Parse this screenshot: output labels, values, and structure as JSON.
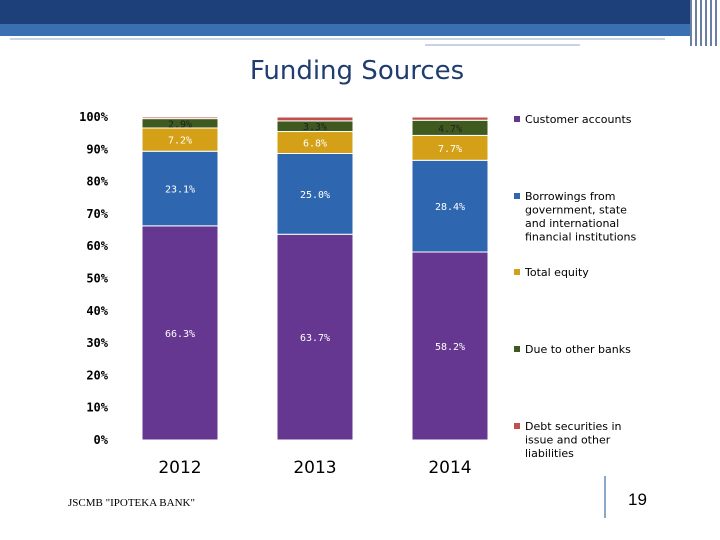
{
  "slide": {
    "title": "Funding Sources",
    "footer": "JSCMB \"IPOTEKA BANK\"",
    "page_number": "19"
  },
  "colors": {
    "customer_accounts": "#653791",
    "borrowings": "#2e66b0",
    "total_equity": "#d4a017",
    "due_to_banks": "#3f5a1e",
    "debt_securities": "#c0504d"
  },
  "chart_data": {
    "type": "bar",
    "stacked": true,
    "title": "Funding Sources",
    "categories": [
      "2012",
      "2013",
      "2014"
    ],
    "ylim": [
      0,
      100
    ],
    "yticks": [
      "0%",
      "10%",
      "20%",
      "30%",
      "40%",
      "50%",
      "60%",
      "70%",
      "80%",
      "90%",
      "100%"
    ],
    "series": [
      {
        "name": "Customer accounts",
        "color": "#653791",
        "values": [
          66.3,
          63.7,
          58.2
        ],
        "labels": [
          "66.3%",
          "63.7%",
          "58.2%"
        ]
      },
      {
        "name": "Borrowings from government, state and international financial institutions",
        "color": "#2e66b0",
        "values": [
          23.1,
          25.0,
          28.4
        ],
        "labels": [
          "23.1%",
          "25.0%",
          "28.4%"
        ]
      },
      {
        "name": "Total equity",
        "color": "#d4a017",
        "values": [
          7.2,
          6.8,
          7.7
        ],
        "labels": [
          "7.2%",
          "6.8%",
          "7.7%"
        ]
      },
      {
        "name": "Due to other banks",
        "color": "#3f5a1e",
        "values": [
          2.9,
          3.3,
          4.7
        ],
        "labels": [
          "2.9%",
          "3.3%",
          "4.7%"
        ]
      },
      {
        "name": "Debt securities in issue and other liabilities",
        "color": "#c0504d",
        "values": [
          0.5,
          1.2,
          1.0
        ],
        "labels": [
          "",
          "",
          ""
        ]
      }
    ],
    "legend": {
      "position": "right",
      "entries": [
        {
          "lines": [
            "Customer accounts"
          ],
          "color": "#653791"
        },
        {
          "lines": [
            "Borrowings from",
            "government, state",
            "and international",
            "financial institutions"
          ],
          "color": "#2e66b0"
        },
        {
          "lines": [
            "Total equity"
          ],
          "color": "#d4a017"
        },
        {
          "lines": [
            "Due to other banks"
          ],
          "color": "#3f5a1e"
        },
        {
          "lines": [
            "Debt securities in",
            "issue and other",
            "liabilities"
          ],
          "color": "#c0504d"
        }
      ]
    }
  }
}
